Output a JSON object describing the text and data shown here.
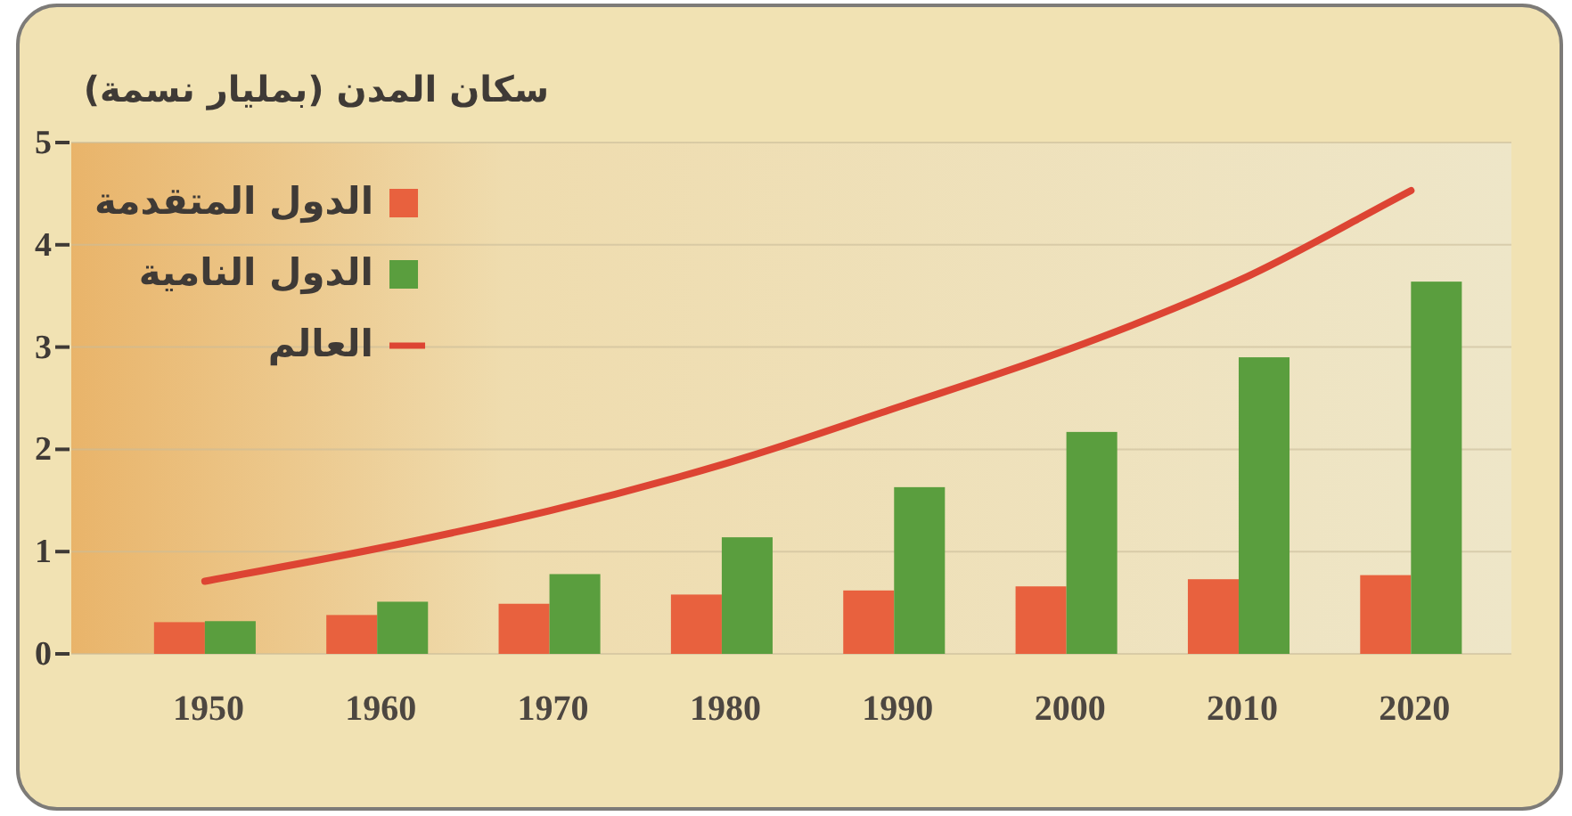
{
  "chart_data": {
    "type": "bar",
    "title": "سكان المدن (بمليار نسمة)",
    "categories": [
      "1950",
      "1960",
      "1970",
      "1980",
      "1990",
      "2000",
      "2010",
      "2020"
    ],
    "series": [
      {
        "name": "الدول المتقدمة",
        "color": "#e8613e",
        "values": [
          0.31,
          0.38,
          0.49,
          0.58,
          0.62,
          0.66,
          0.73,
          0.77
        ]
      },
      {
        "name": "الدول النامية",
        "color": "#5a9e3e",
        "values": [
          0.32,
          0.51,
          0.78,
          1.14,
          1.63,
          2.17,
          2.9,
          3.64
        ]
      },
      {
        "name": "العالم",
        "type": "line",
        "color": "#dd4433",
        "values": [
          0.71,
          1.03,
          1.4,
          1.85,
          2.4,
          2.97,
          3.65,
          4.53
        ]
      }
    ],
    "ylim": [
      0,
      5
    ],
    "yticks": [
      0,
      1,
      2,
      3,
      4,
      5
    ],
    "grid": "y",
    "legend": "top left"
  }
}
